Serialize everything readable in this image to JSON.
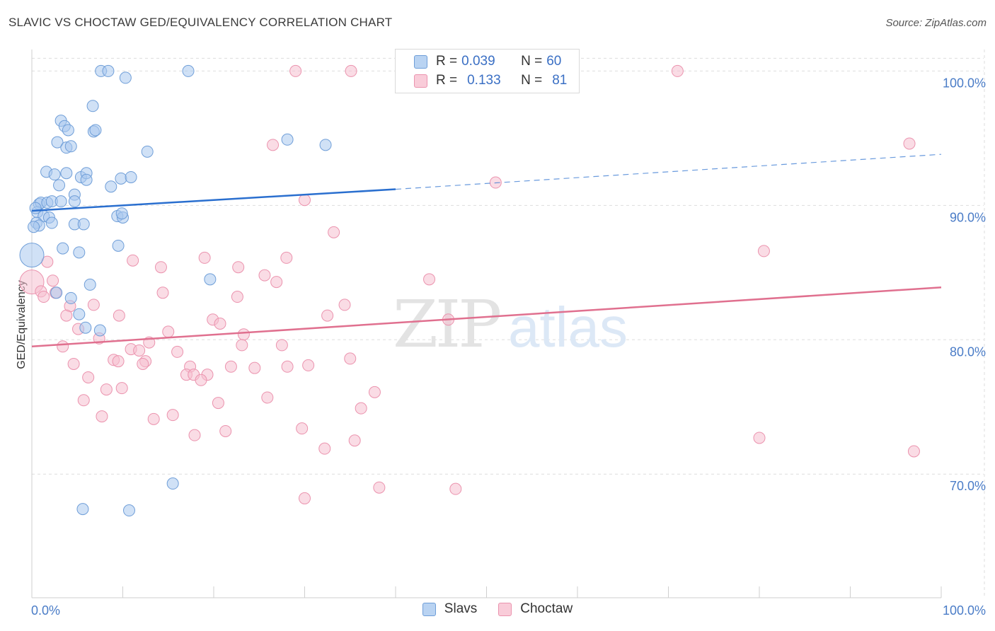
{
  "title": "SLAVIC VS CHOCTAW GED/EQUIVALENCY CORRELATION CHART",
  "source": "Source: ZipAtlas.com",
  "watermark": {
    "zip": "ZIP",
    "atlas": "atlas"
  },
  "legend": {
    "r_label": "R =",
    "n_label": "N =",
    "slavs": {
      "r": "0.039",
      "n": "60"
    },
    "choctaw": {
      "r": "0.133",
      "n": "81"
    }
  },
  "bottom_legend": {
    "slavs": "Slavs",
    "choctaw": "Choctaw"
  },
  "colors": {
    "slavs_fill": "#aac8ee",
    "slavs_stroke": "#6f9ed8",
    "slavs_line": "#2a6fcf",
    "choctaw_fill": "#f6bfd0",
    "choctaw_stroke": "#eb93ae",
    "choctaw_line": "#e0708f",
    "grid": "#dddddd",
    "axis_tick_text": "#4a7cc7"
  },
  "chart_data": {
    "type": "scatter",
    "title": "SLAVIC VS CHOCTAW GED/EQUIVALENCY CORRELATION CHART",
    "xlabel": "",
    "ylabel": "GED/Equivalency",
    "xlim": [
      0,
      100
    ],
    "ylim": [
      60.8,
      101.6
    ],
    "x_tick_labels": [
      "0.0%",
      "100.0%"
    ],
    "y_ticks": [
      70,
      80,
      90,
      100
    ],
    "y_tick_labels": [
      "70.0%",
      "80.0%",
      "90.0%",
      "100.0%"
    ],
    "grid": true,
    "series": [
      {
        "name": "Slavs",
        "r": 0.039,
        "n": 60,
        "trend": {
          "x0": 0,
          "y0": 89.6,
          "x1": 40,
          "y1": 91.2,
          "dash_to_x": 100,
          "dash_to_y": 93.8
        },
        "points": [
          [
            7.6,
            100
          ],
          [
            8.4,
            100
          ],
          [
            17.2,
            100
          ],
          [
            10.3,
            99.5
          ],
          [
            6.7,
            97.4
          ],
          [
            3.2,
            96.3
          ],
          [
            3.6,
            95.9
          ],
          [
            4.0,
            95.6
          ],
          [
            6.8,
            95.5
          ],
          [
            7.0,
            95.6
          ],
          [
            2.8,
            94.7
          ],
          [
            3.8,
            94.3
          ],
          [
            4.3,
            94.4
          ],
          [
            12.7,
            94.0
          ],
          [
            28.1,
            94.9
          ],
          [
            32.3,
            94.5
          ],
          [
            1.6,
            92.5
          ],
          [
            2.5,
            92.3
          ],
          [
            3.8,
            92.4
          ],
          [
            5.4,
            92.1
          ],
          [
            6.0,
            92.4
          ],
          [
            6.0,
            91.9
          ],
          [
            9.8,
            92.0
          ],
          [
            10.9,
            92.1
          ],
          [
            3.0,
            91.5
          ],
          [
            8.7,
            91.4
          ],
          [
            4.7,
            90.8
          ],
          [
            0.8,
            90.1
          ],
          [
            1.0,
            90.2
          ],
          [
            1.7,
            90.2
          ],
          [
            2.2,
            90.3
          ],
          [
            3.2,
            90.3
          ],
          [
            4.7,
            90.3
          ],
          [
            0.6,
            89.5
          ],
          [
            1.3,
            89.2
          ],
          [
            1.9,
            89.1
          ],
          [
            9.4,
            89.2
          ],
          [
            10.0,
            89.1
          ],
          [
            9.9,
            89.4
          ],
          [
            0.5,
            88.7
          ],
          [
            0.8,
            88.5
          ],
          [
            2.2,
            88.7
          ],
          [
            4.7,
            88.6
          ],
          [
            5.7,
            88.6
          ],
          [
            9.5,
            87.0
          ],
          [
            3.4,
            86.8
          ],
          [
            5.2,
            86.5
          ],
          [
            0,
            86.3
          ],
          [
            19.6,
            84.5
          ],
          [
            6.4,
            84.1
          ],
          [
            2.7,
            83.5
          ],
          [
            4.3,
            83.1
          ],
          [
            5.2,
            81.9
          ],
          [
            5.9,
            80.9
          ],
          [
            7.5,
            80.7
          ],
          [
            15.5,
            69.3
          ],
          [
            5.6,
            67.4
          ],
          [
            10.7,
            67.3
          ],
          [
            0.4,
            89.8
          ],
          [
            0.2,
            88.4
          ]
        ]
      },
      {
        "name": "Choctaw",
        "r": 0.133,
        "n": 81,
        "trend": {
          "x0": 0,
          "y0": 79.5,
          "x1": 100,
          "y1": 83.9
        },
        "points": [
          [
            29.0,
            100
          ],
          [
            35.1,
            100
          ],
          [
            71.0,
            100
          ],
          [
            96.5,
            94.6
          ],
          [
            26.5,
            94.5
          ],
          [
            51.0,
            91.7
          ],
          [
            30.0,
            90.4
          ],
          [
            33.2,
            88.0
          ],
          [
            80.5,
            86.6
          ],
          [
            1.7,
            85.8
          ],
          [
            11.1,
            85.9
          ],
          [
            14.2,
            85.4
          ],
          [
            19.0,
            86.1
          ],
          [
            22.7,
            85.4
          ],
          [
            28.0,
            86.1
          ],
          [
            25.6,
            84.8
          ],
          [
            26.9,
            84.3
          ],
          [
            43.7,
            84.5
          ],
          [
            2.3,
            84.4
          ],
          [
            0.0,
            84.3
          ],
          [
            1.0,
            83.6
          ],
          [
            1.3,
            83.2
          ],
          [
            2.6,
            83.5
          ],
          [
            14.4,
            83.5
          ],
          [
            22.6,
            83.2
          ],
          [
            4.2,
            82.5
          ],
          [
            6.8,
            82.6
          ],
          [
            34.4,
            82.6
          ],
          [
            3.8,
            81.8
          ],
          [
            9.6,
            81.8
          ],
          [
            32.5,
            81.8
          ],
          [
            19.9,
            81.5
          ],
          [
            20.7,
            81.2
          ],
          [
            45.8,
            81.5
          ],
          [
            5.1,
            80.8
          ],
          [
            15.0,
            80.6
          ],
          [
            23.3,
            80.4
          ],
          [
            7.4,
            80.1
          ],
          [
            12.9,
            79.8
          ],
          [
            23.1,
            79.6
          ],
          [
            27.5,
            79.6
          ],
          [
            3.4,
            79.5
          ],
          [
            10.9,
            79.3
          ],
          [
            11.8,
            79.2
          ],
          [
            16.0,
            79.1
          ],
          [
            35.0,
            78.6
          ],
          [
            9.0,
            78.5
          ],
          [
            9.5,
            78.4
          ],
          [
            12.5,
            78.4
          ],
          [
            4.6,
            78.2
          ],
          [
            12.2,
            78.2
          ],
          [
            17.4,
            78.0
          ],
          [
            21.9,
            78.0
          ],
          [
            24.5,
            77.9
          ],
          [
            28.1,
            78.0
          ],
          [
            30.4,
            78.1
          ],
          [
            17.0,
            77.4
          ],
          [
            17.8,
            77.4
          ],
          [
            19.3,
            77.4
          ],
          [
            6.2,
            77.2
          ],
          [
            18.6,
            77.0
          ],
          [
            8.2,
            76.3
          ],
          [
            9.9,
            76.4
          ],
          [
            37.7,
            76.1
          ],
          [
            25.9,
            75.7
          ],
          [
            5.7,
            75.5
          ],
          [
            20.5,
            75.3
          ],
          [
            36.2,
            74.9
          ],
          [
            7.7,
            74.3
          ],
          [
            15.5,
            74.4
          ],
          [
            13.4,
            74.1
          ],
          [
            29.7,
            73.4
          ],
          [
            21.3,
            73.2
          ],
          [
            17.9,
            72.9
          ],
          [
            80.0,
            72.7
          ],
          [
            35.5,
            72.5
          ],
          [
            32.2,
            71.9
          ],
          [
            97.0,
            71.7
          ],
          [
            30.0,
            68.2
          ],
          [
            38.2,
            69.0
          ],
          [
            46.6,
            68.9
          ]
        ]
      }
    ]
  }
}
